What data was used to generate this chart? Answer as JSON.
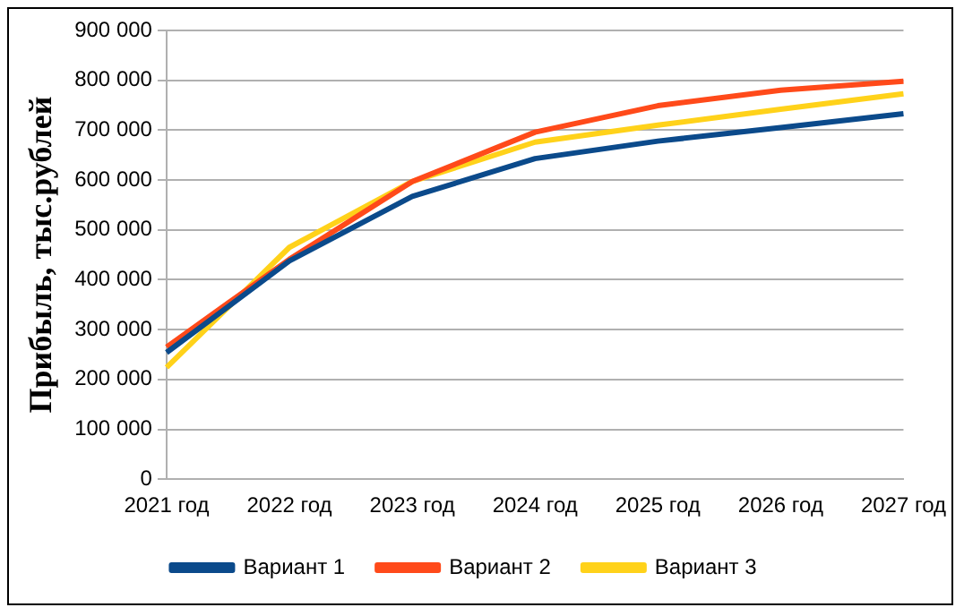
{
  "chart_data": {
    "type": "line",
    "ylabel": "Прибыль, тыс.рублей",
    "categories": [
      "2021 год",
      "2022 год",
      "2023 год",
      "2024 год",
      "2025 год",
      "2026 год",
      "2027 год"
    ],
    "series": [
      {
        "name": "Вариант 1",
        "color": "#0b4a8b",
        "values": [
          254000,
          438000,
          567000,
          643000,
          678000,
          705000,
          733000
        ]
      },
      {
        "name": "Вариант 2",
        "color": "#ff4a1a",
        "values": [
          265000,
          441000,
          597000,
          696000,
          749000,
          780000,
          798000
        ]
      },
      {
        "name": "Вариант 3",
        "color": "#ffd21a",
        "values": [
          224000,
          465000,
          597000,
          676000,
          710000,
          742000,
          773000
        ]
      }
    ],
    "ylim": [
      0,
      900000
    ],
    "yticks": [
      0,
      {
        "value": 100000,
        "label": "100 000"
      },
      {
        "value": 200000,
        "label": "200 000"
      },
      {
        "value": 300000,
        "label": "300 000"
      },
      {
        "value": 400000,
        "label": "400 000"
      },
      {
        "value": 500000,
        "label": "500 000"
      },
      {
        "value": 600000,
        "label": "600 000"
      },
      {
        "value": 700000,
        "label": "700 000"
      },
      {
        "value": 800000,
        "label": "800 000"
      },
      {
        "value": 900000,
        "label": "900 000"
      }
    ],
    "grid": "y",
    "legend": "bottom",
    "marker": "none",
    "line_style": "solid"
  }
}
